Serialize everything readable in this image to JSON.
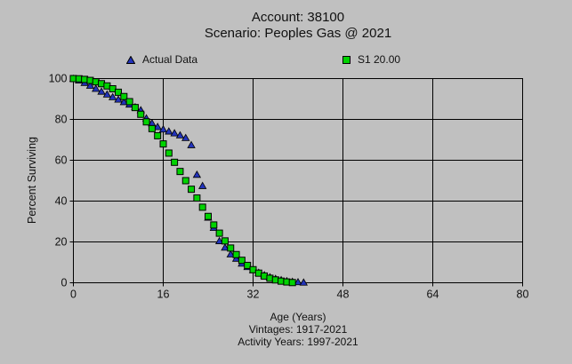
{
  "window": {
    "background": "#c0c0c0",
    "text_color": "#111111"
  },
  "chart": {
    "title_line1": "Account: 38100",
    "title_line2": "Scenario: Peoples Gas @ 2021",
    "y_axis_title": "Percent Surviving",
    "x_axis_title": "Age (Years)",
    "footnote_line1": "Vintages: 1917-2021",
    "footnote_line2": "Activity Years: 1997-2021",
    "legend": [
      {
        "label": "Actual Data",
        "marker": "triangle",
        "color": "#2233bb"
      },
      {
        "label": "S1 20.00",
        "marker": "square",
        "color": "#00d300"
      }
    ]
  },
  "chart_data": {
    "type": "scatter",
    "title": "Account: 38100 / Scenario: Peoples Gas @ 2021",
    "xlabel": "Age (Years)",
    "ylabel": "Percent Surviving",
    "xlim": [
      0,
      80
    ],
    "ylim": [
      0,
      100
    ],
    "xticks": [
      0,
      16,
      32,
      48,
      64,
      80
    ],
    "yticks": [
      0,
      20,
      40,
      60,
      80,
      100
    ],
    "grid": true,
    "grid_color": "#000000",
    "legend_position": "top",
    "series": [
      {
        "name": "Actual Data",
        "marker": "triangle",
        "color": "#2233bb",
        "x": [
          0,
          1,
          2,
          3,
          4,
          5,
          6,
          7,
          8,
          9,
          10,
          11,
          12,
          13,
          14,
          15,
          16,
          17,
          18,
          19,
          20,
          21,
          22,
          23,
          24,
          25,
          26,
          27,
          28,
          29,
          30,
          31,
          32,
          33,
          34,
          35,
          36,
          37,
          38,
          39,
          40,
          41
        ],
        "y": [
          100,
          99.2,
          98.0,
          96.6,
          95.1,
          93.7,
          92.3,
          91.0,
          89.8,
          88.6,
          87.4,
          86.1,
          84.6,
          80.6,
          78.2,
          76.4,
          75.2,
          74.2,
          73.3,
          72.3,
          71.0,
          67.5,
          53.0,
          47.5,
          32.0,
          27.0,
          20.5,
          17.3,
          14.0,
          11.9,
          9.5,
          7.8,
          6.3,
          5.0,
          3.8,
          2.8,
          2.0,
          1.4,
          0.9,
          0.6,
          0.4,
          0.2
        ]
      },
      {
        "name": "S1 20.00",
        "marker": "square",
        "color": "#00d300",
        "x": [
          0,
          1,
          2,
          3,
          4,
          5,
          6,
          7,
          8,
          9,
          10,
          11,
          12,
          13,
          14,
          15,
          16,
          17,
          18,
          19,
          20,
          21,
          22,
          23,
          24,
          25,
          26,
          27,
          28,
          29,
          30,
          31,
          32,
          33,
          34,
          35,
          36,
          37,
          38,
          39
        ],
        "y": [
          100,
          99.9,
          99.6,
          99.1,
          98.4,
          97.5,
          96.4,
          95.0,
          93.3,
          91.2,
          88.7,
          85.8,
          82.5,
          78.8,
          75.5,
          72.0,
          68.0,
          63.5,
          59.0,
          54.5,
          50.0,
          45.8,
          41.5,
          37.0,
          32.5,
          28.3,
          24.3,
          20.5,
          17.0,
          13.8,
          11.0,
          8.5,
          6.4,
          4.7,
          3.3,
          2.2,
          1.4,
          0.8,
          0.4,
          0.1
        ]
      }
    ]
  }
}
